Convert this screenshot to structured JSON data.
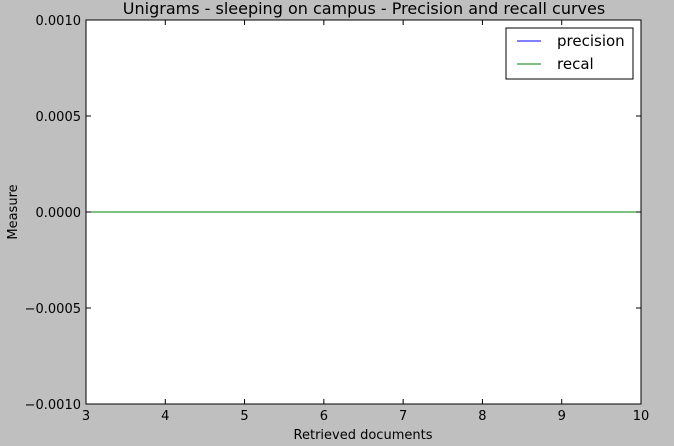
{
  "chart_data": {
    "type": "line",
    "title": "Unigrams - sleeping on campus - Precision and recall curves",
    "xlabel": "Retrieved documents",
    "ylabel": "Measure",
    "xlim": [
      3,
      10
    ],
    "ylim": [
      -0.001,
      0.001
    ],
    "x_ticks": [
      3,
      4,
      5,
      6,
      7,
      8,
      9,
      10
    ],
    "x_tick_labels": [
      "3",
      "4",
      "5",
      "6",
      "7",
      "8",
      "9",
      "10"
    ],
    "y_ticks": [
      -0.001,
      -0.0005,
      0,
      0.0005,
      0.001
    ],
    "y_tick_labels": [
      "−0.0010",
      "−0.0005",
      "0.0000",
      "0.0005",
      "0.0010"
    ],
    "legend_position": "top-right",
    "grid": false,
    "series": [
      {
        "name": "precision",
        "color": "#0000ff",
        "x": [
          3,
          4,
          5,
          6,
          7,
          8,
          9,
          10
        ],
        "y": [
          0,
          0,
          0,
          0,
          0,
          0,
          0,
          0
        ]
      },
      {
        "name": "recal",
        "color": "#008000",
        "x": [
          3,
          4,
          5,
          6,
          7,
          8,
          9,
          10
        ],
        "y": [
          0,
          0,
          0,
          0,
          0,
          0,
          0,
          0
        ]
      }
    ]
  }
}
